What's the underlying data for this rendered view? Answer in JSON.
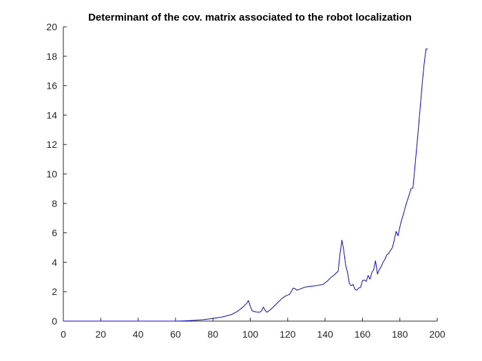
{
  "chart_data": {
    "type": "line",
    "title": "Determinant of the cov. matrix associated to the robot localization",
    "xlabel": "",
    "ylabel": "",
    "xlim": [
      0,
      200
    ],
    "ylim": [
      0,
      20
    ],
    "xticks": [
      0,
      20,
      40,
      60,
      80,
      100,
      120,
      140,
      160,
      180,
      200
    ],
    "yticks": [
      0,
      2,
      4,
      6,
      8,
      10,
      12,
      14,
      16,
      18,
      20
    ],
    "grid": false,
    "legend": "none",
    "series": [
      {
        "color": "#0000ff",
        "x": [
          0,
          60,
          65,
          70,
          75,
          80,
          85,
          90,
          93,
          96,
          98,
          99,
          100,
          101,
          103,
          105,
          106,
          107,
          108,
          109,
          111,
          113,
          115,
          117,
          119,
          121,
          123,
          124,
          125,
          127,
          129,
          131,
          133,
          135,
          137,
          139,
          141,
          143,
          145,
          147,
          148,
          149,
          150,
          151,
          152,
          153,
          154,
          155,
          156,
          157,
          158,
          159,
          160,
          161,
          162,
          163,
          164,
          165,
          166,
          167,
          168,
          169,
          170,
          171,
          172,
          173,
          174,
          175,
          176,
          177,
          178,
          179,
          180,
          181,
          182,
          183,
          184,
          185,
          186,
          187,
          188,
          189,
          190,
          191,
          192,
          193,
          194,
          195
        ],
        "y": [
          0,
          0,
          0.02,
          0.05,
          0.1,
          0.18,
          0.28,
          0.45,
          0.65,
          0.95,
          1.2,
          1.4,
          1.0,
          0.7,
          0.62,
          0.6,
          0.7,
          0.95,
          0.72,
          0.6,
          0.8,
          1.05,
          1.3,
          1.55,
          1.72,
          1.82,
          2.25,
          2.2,
          2.1,
          2.2,
          2.3,
          2.35,
          2.38,
          2.4,
          2.45,
          2.5,
          2.7,
          2.95,
          3.15,
          3.4,
          4.6,
          5.5,
          4.8,
          3.8,
          3.3,
          2.55,
          2.4,
          2.5,
          2.15,
          2.1,
          2.25,
          2.3,
          2.75,
          2.8,
          2.7,
          3.1,
          2.85,
          3.3,
          3.5,
          4.1,
          3.2,
          3.5,
          3.7,
          4.0,
          4.2,
          4.5,
          4.6,
          4.8,
          5.0,
          5.5,
          6.1,
          5.8,
          6.4,
          6.9,
          7.3,
          7.8,
          8.2,
          8.6,
          9.0,
          9.05,
          10.4,
          11.8,
          13.2,
          14.7,
          16.2,
          17.5,
          18.5,
          18.5
        ]
      }
    ]
  }
}
